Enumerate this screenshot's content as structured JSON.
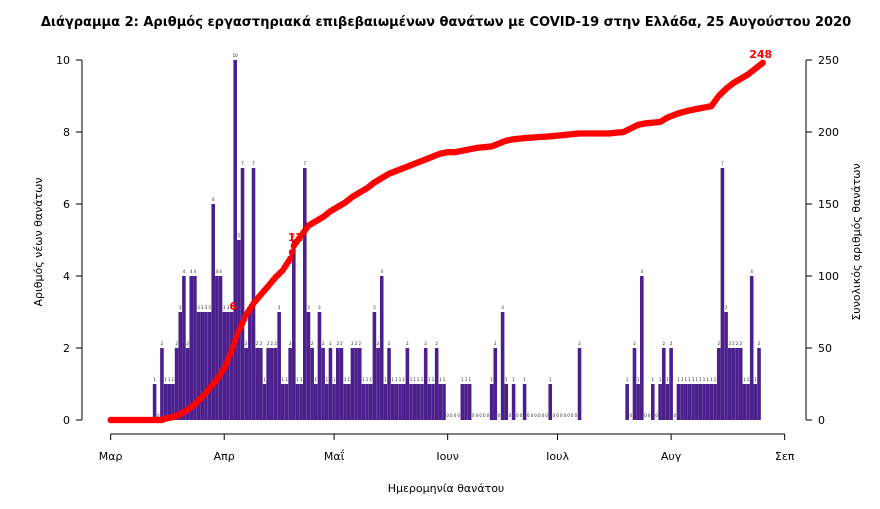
{
  "chart_data": {
    "type": "bar+line",
    "title": "Διάγραμμα 2: Αριθμός εργαστηριακά επιβεβαιωμένων θανάτων με COVID-19 στην Ελλάδα, 25 Αυγούστου 2020",
    "xlabel": "Ημερομηνία θανάτου",
    "ylabel_left": "Αριθμός νέων θανάτων",
    "ylabel_right": "Συνολικός αριθμός θανάτων",
    "x_ticks": [
      "Μαρ",
      "Απρ",
      "Μαΐ",
      "Ιουν",
      "Ιουλ",
      "Αυγ",
      "Σεπ"
    ],
    "x_tick_days": [
      0,
      31,
      61,
      92,
      122,
      153,
      184
    ],
    "ylim_left": [
      0,
      10
    ],
    "yticks_left": [
      0,
      2,
      4,
      6,
      8,
      10
    ],
    "ylim_right": [
      0,
      250
    ],
    "yticks_right": [
      0,
      50,
      100,
      150,
      200,
      250
    ],
    "colors": {
      "bars": "#4b1f8c",
      "line": "#ff0000"
    },
    "daily_deaths": [
      0,
      0,
      0,
      0,
      0,
      0,
      0,
      0,
      0,
      0,
      0,
      0,
      0,
      0,
      0,
      0,
      0,
      0,
      0,
      0,
      0,
      0,
      0,
      0,
      0,
      0,
      0,
      0,
      0,
      0,
      0,
      0,
      0,
      0,
      0,
      0,
      0,
      0,
      0,
      0,
      0,
      0,
      0,
      0,
      0,
      0,
      0,
      0,
      0,
      0,
      0,
      0,
      0,
      0,
      0,
      0,
      0,
      0,
      0,
      0,
      0,
      0,
      0,
      0,
      0,
      0,
      0,
      0,
      0,
      0,
      0,
      0,
      0,
      0,
      0,
      0,
      0,
      0,
      0,
      0,
      0,
      0,
      0,
      0,
      0,
      0,
      0,
      0,
      0,
      0,
      0,
      0,
      0,
      0,
      0,
      0,
      0,
      0,
      0,
      0,
      0,
      0,
      0,
      0,
      0,
      0,
      0,
      0,
      0,
      0,
      0,
      0,
      0,
      0,
      0,
      0,
      0,
      0,
      0,
      0,
      0,
      0,
      0,
      0,
      0,
      0,
      0,
      0,
      0,
      0,
      0,
      0,
      0,
      0,
      0,
      0,
      0,
      0,
      0,
      0,
      0,
      0,
      0,
      0,
      0,
      0,
      0,
      0,
      0,
      0,
      0,
      0,
      0,
      0,
      0,
      0,
      0,
      0,
      0,
      0,
      0,
      0,
      0,
      0,
      0,
      0,
      0,
      0,
      0,
      0,
      0,
      0,
      0,
      0,
      0,
      0,
      0,
      0,
      0,
      0,
      0,
      0,
      0,
      0,
      0,
      0,
      0,
      0,
      0,
      0,
      0,
      0,
      0,
      0,
      0,
      0,
      0,
      0
    ],
    "bars": [
      [
        12,
        1
      ],
      [
        13,
        0
      ],
      [
        14,
        2
      ],
      [
        15,
        1
      ],
      [
        16,
        1
      ],
      [
        17,
        1
      ],
      [
        18,
        2
      ],
      [
        19,
        3
      ],
      [
        20,
        4
      ],
      [
        21,
        2
      ],
      [
        22,
        4
      ],
      [
        23,
        4
      ],
      [
        24,
        3
      ],
      [
        25,
        3
      ],
      [
        26,
        3
      ],
      [
        27,
        3
      ],
      [
        28,
        6
      ],
      [
        29,
        4
      ],
      [
        30,
        4
      ],
      [
        31,
        3
      ],
      [
        32,
        3
      ],
      [
        33,
        3
      ],
      [
        34,
        10
      ],
      [
        35,
        5
      ],
      [
        36,
        7
      ],
      [
        37,
        2
      ],
      [
        38,
        3
      ],
      [
        39,
        7
      ],
      [
        40,
        2
      ],
      [
        41,
        2
      ],
      [
        42,
        1
      ],
      [
        43,
        2
      ],
      [
        44,
        2
      ],
      [
        45,
        2
      ],
      [
        46,
        3
      ],
      [
        47,
        1
      ],
      [
        48,
        1
      ],
      [
        49,
        2
      ],
      [
        50,
        5
      ],
      [
        51,
        1
      ],
      [
        52,
        1
      ],
      [
        53,
        7
      ],
      [
        54,
        3
      ],
      [
        55,
        2
      ],
      [
        56,
        1
      ],
      [
        57,
        3
      ],
      [
        58,
        2
      ],
      [
        59,
        1
      ],
      [
        60,
        2
      ],
      [
        61,
        1
      ],
      [
        62,
        2
      ],
      [
        63,
        2
      ],
      [
        64,
        1
      ],
      [
        65,
        1
      ],
      [
        66,
        2
      ],
      [
        67,
        2
      ],
      [
        68,
        2
      ],
      [
        69,
        1
      ],
      [
        70,
        1
      ],
      [
        71,
        1
      ],
      [
        72,
        3
      ],
      [
        73,
        2
      ],
      [
        74,
        4
      ],
      [
        75,
        1
      ],
      [
        76,
        2
      ],
      [
        77,
        1
      ],
      [
        78,
        1
      ],
      [
        79,
        1
      ],
      [
        80,
        1
      ],
      [
        81,
        2
      ],
      [
        82,
        1
      ],
      [
        83,
        1
      ],
      [
        84,
        1
      ],
      [
        85,
        1
      ],
      [
        86,
        2
      ],
      [
        87,
        1
      ],
      [
        88,
        1
      ],
      [
        89,
        2
      ],
      [
        90,
        1
      ],
      [
        91,
        1
      ],
      [
        92,
        0
      ],
      [
        93,
        0
      ],
      [
        94,
        0
      ],
      [
        95,
        0
      ],
      [
        96,
        1
      ],
      [
        97,
        1
      ],
      [
        98,
        1
      ],
      [
        99,
        0
      ],
      [
        100,
        0
      ],
      [
        101,
        0
      ],
      [
        102,
        0
      ],
      [
        103,
        0
      ],
      [
        104,
        1
      ],
      [
        105,
        2
      ],
      [
        106,
        0
      ],
      [
        107,
        3
      ],
      [
        108,
        1
      ],
      [
        109,
        0
      ],
      [
        110,
        1
      ],
      [
        111,
        0
      ],
      [
        112,
        0
      ],
      [
        113,
        1
      ],
      [
        114,
        0
      ],
      [
        115,
        0
      ],
      [
        116,
        0
      ],
      [
        117,
        0
      ],
      [
        118,
        0
      ],
      [
        119,
        0
      ],
      [
        120,
        1
      ],
      [
        121,
        0
      ],
      [
        122,
        0
      ],
      [
        123,
        0
      ],
      [
        124,
        0
      ],
      [
        125,
        0
      ],
      [
        126,
        0
      ],
      [
        127,
        0
      ],
      [
        128,
        2
      ],
      [
        141,
        1
      ],
      [
        142,
        0
      ],
      [
        143,
        2
      ],
      [
        144,
        1
      ],
      [
        145,
        4
      ],
      [
        146,
        0
      ],
      [
        147,
        0
      ],
      [
        148,
        1
      ],
      [
        149,
        0
      ],
      [
        150,
        1
      ],
      [
        151,
        2
      ],
      [
        152,
        1
      ],
      [
        153,
        2
      ],
      [
        154,
        0
      ],
      [
        155,
        1
      ],
      [
        156,
        1
      ],
      [
        157,
        1
      ],
      [
        158,
        1
      ],
      [
        159,
        1
      ],
      [
        160,
        1
      ],
      [
        161,
        1
      ],
      [
        162,
        1
      ],
      [
        163,
        1
      ],
      [
        164,
        1
      ],
      [
        165,
        1
      ],
      [
        166,
        2
      ],
      [
        167,
        7
      ],
      [
        168,
        3
      ],
      [
        169,
        2
      ],
      [
        170,
        2
      ],
      [
        171,
        2
      ],
      [
        172,
        2
      ],
      [
        173,
        1
      ],
      [
        174,
        1
      ],
      [
        175,
        4
      ],
      [
        176,
        1
      ],
      [
        177,
        2
      ]
    ],
    "cumulative": [
      [
        0,
        0
      ],
      [
        14,
        0
      ],
      [
        15,
        1
      ],
      [
        17,
        2
      ],
      [
        19,
        4
      ],
      [
        21,
        7
      ],
      [
        23,
        11
      ],
      [
        25,
        16
      ],
      [
        27,
        22
      ],
      [
        29,
        28
      ],
      [
        31,
        36
      ],
      [
        33,
        48
      ],
      [
        35,
        62
      ],
      [
        37,
        73
      ],
      [
        39,
        81
      ],
      [
        41,
        87
      ],
      [
        43,
        93
      ],
      [
        45,
        99
      ],
      [
        47,
        104
      ],
      [
        49,
        112
      ],
      [
        50,
        121
      ],
      [
        52,
        128
      ],
      [
        54,
        135
      ],
      [
        56,
        138
      ],
      [
        58,
        141
      ],
      [
        60,
        145
      ],
      [
        62,
        148
      ],
      [
        64,
        151
      ],
      [
        66,
        155
      ],
      [
        68,
        158
      ],
      [
        70,
        161
      ],
      [
        72,
        165
      ],
      [
        74,
        168
      ],
      [
        76,
        171
      ],
      [
        78,
        173
      ],
      [
        80,
        175
      ],
      [
        82,
        177
      ],
      [
        84,
        179
      ],
      [
        86,
        181
      ],
      [
        88,
        183
      ],
      [
        90,
        185
      ],
      [
        92,
        186
      ],
      [
        94,
        186
      ],
      [
        96,
        187
      ],
      [
        98,
        188
      ],
      [
        100,
        189
      ],
      [
        104,
        190
      ],
      [
        106,
        192
      ],
      [
        108,
        194
      ],
      [
        110,
        195
      ],
      [
        114,
        196
      ],
      [
        120,
        197
      ],
      [
        124,
        198
      ],
      [
        128,
        199
      ],
      [
        130,
        199
      ],
      [
        136,
        199
      ],
      [
        140,
        200
      ],
      [
        144,
        205
      ],
      [
        146,
        206
      ],
      [
        150,
        207
      ],
      [
        152,
        210
      ],
      [
        155,
        213
      ],
      [
        158,
        215
      ],
      [
        162,
        217
      ],
      [
        164,
        218
      ],
      [
        166,
        225
      ],
      [
        168,
        230
      ],
      [
        170,
        234
      ],
      [
        172,
        237
      ],
      [
        174,
        240
      ],
      [
        176,
        244
      ],
      [
        178,
        248
      ]
    ],
    "annotations": [
      {
        "x_day": 34,
        "y_cum": 73,
        "label": "6"
      },
      {
        "x_day": 51,
        "y_cum": 121,
        "label": "12"
      },
      {
        "x_day": 178,
        "y_cum": 248,
        "label": "248"
      }
    ]
  }
}
